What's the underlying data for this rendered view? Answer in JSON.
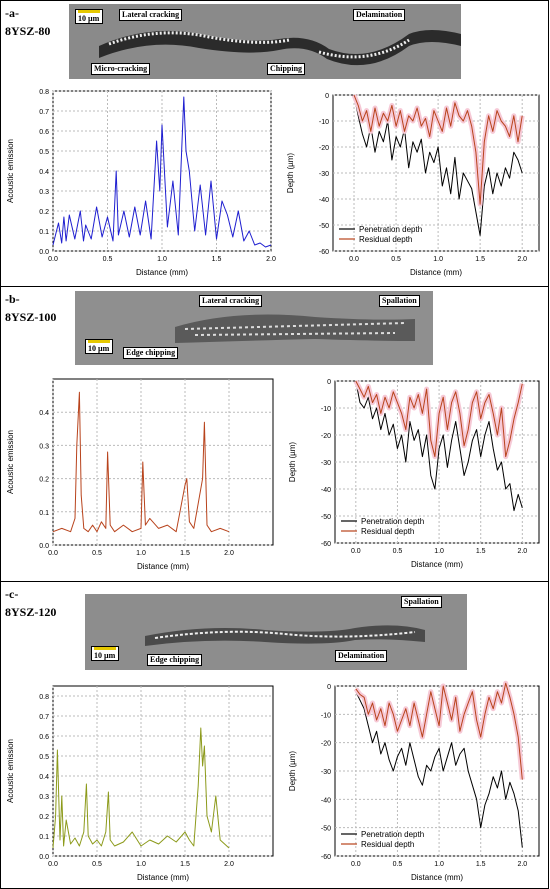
{
  "panels": [
    {
      "label": "-a-",
      "sample": "8YSZ-80",
      "scale_bar": "10 µm",
      "annotations": [
        "Lateral cracking",
        "Delamination",
        "Micro-cracking",
        "Chipping"
      ]
    },
    {
      "label": "-b-",
      "sample": "8YSZ-100",
      "scale_bar": "10 µm",
      "annotations": [
        "Lateral cracking",
        "Spallation",
        "Edge chipping"
      ]
    },
    {
      "label": "-c-",
      "sample": "8YSZ-120",
      "scale_bar": "10 µm",
      "annotations": [
        "Spallation",
        "Edge chipping",
        "Delamination"
      ]
    }
  ],
  "colors": {
    "ae_a": "#1f1fd0",
    "ae_b": "#b8431c",
    "ae_c": "#8c9a1a",
    "penetration": "#000000",
    "residual": "#b8431c",
    "band": "#f6c9d6"
  },
  "chart_data": [
    {
      "type": "line",
      "panel": "a",
      "xlabel": "Distance (mm)",
      "ylabel": "Acoustic emission",
      "xlim": [
        0,
        2
      ],
      "ylim": [
        0,
        0.8
      ],
      "xticks": [
        0.0,
        0.5,
        1.0,
        1.5,
        2.0
      ],
      "yticks": [
        0.0,
        0.1,
        0.2,
        0.3,
        0.4,
        0.5,
        0.6,
        0.7,
        0.8
      ],
      "series": [
        {
          "x": [
            0.0,
            0.05,
            0.08,
            0.1,
            0.12,
            0.15,
            0.2,
            0.25,
            0.28,
            0.3,
            0.35,
            0.4,
            0.45,
            0.5,
            0.55,
            0.58,
            0.6,
            0.65,
            0.7,
            0.75,
            0.8,
            0.85,
            0.9,
            0.95,
            0.98,
            1.0,
            1.05,
            1.1,
            1.15,
            1.2,
            1.22,
            1.25,
            1.3,
            1.35,
            1.4,
            1.45,
            1.5,
            1.55,
            1.6,
            1.65,
            1.7,
            1.75,
            1.8,
            1.85,
            1.9,
            1.95,
            2.0
          ],
          "y": [
            0.03,
            0.14,
            0.04,
            0.17,
            0.05,
            0.18,
            0.06,
            0.2,
            0.05,
            0.13,
            0.06,
            0.22,
            0.07,
            0.17,
            0.05,
            0.4,
            0.08,
            0.2,
            0.07,
            0.22,
            0.08,
            0.25,
            0.06,
            0.55,
            0.3,
            0.63,
            0.12,
            0.35,
            0.08,
            0.77,
            0.5,
            0.4,
            0.1,
            0.33,
            0.08,
            0.35,
            0.06,
            0.25,
            0.18,
            0.07,
            0.2,
            0.05,
            0.1,
            0.03,
            0.04,
            0.02,
            0.03
          ]
        }
      ]
    },
    {
      "type": "line",
      "panel": "a",
      "xlabel": "Distance (mm)",
      "ylabel": "Depth (µm)",
      "xlim": [
        -0.25,
        2.2
      ],
      "ylim": [
        -60,
        0
      ],
      "xticks": [
        0.0,
        0.5,
        1.0,
        1.5,
        2.0
      ],
      "yticks": [
        -60,
        -50,
        -40,
        -30,
        -20,
        -10,
        0
      ],
      "legend": "bottom-left",
      "series": [
        {
          "name": "Penetration depth",
          "x": [
            0.0,
            0.05,
            0.1,
            0.15,
            0.2,
            0.25,
            0.3,
            0.35,
            0.4,
            0.45,
            0.5,
            0.55,
            0.6,
            0.65,
            0.7,
            0.75,
            0.8,
            0.85,
            0.9,
            0.95,
            1.0,
            1.05,
            1.1,
            1.15,
            1.2,
            1.25,
            1.3,
            1.35,
            1.4,
            1.45,
            1.5,
            1.55,
            1.6,
            1.65,
            1.7,
            1.75,
            1.8,
            1.85,
            1.9,
            1.95,
            2.0
          ],
          "y": [
            0,
            -8,
            -15,
            -20,
            -12,
            -22,
            -14,
            -18,
            -10,
            -25,
            -16,
            -20,
            -13,
            -28,
            -18,
            -22,
            -17,
            -30,
            -22,
            -26,
            -20,
            -35,
            -28,
            -38,
            -24,
            -40,
            -30,
            -33,
            -36,
            -45,
            -54,
            -35,
            -28,
            -38,
            -30,
            -35,
            -28,
            -32,
            -22,
            -25,
            -30
          ]
        },
        {
          "name": "Residual depth",
          "x": [
            0.0,
            0.05,
            0.1,
            0.15,
            0.2,
            0.25,
            0.3,
            0.35,
            0.4,
            0.45,
            0.5,
            0.55,
            0.6,
            0.65,
            0.7,
            0.75,
            0.8,
            0.85,
            0.9,
            0.95,
            1.0,
            1.05,
            1.1,
            1.15,
            1.2,
            1.25,
            1.3,
            1.35,
            1.4,
            1.45,
            1.5,
            1.55,
            1.6,
            1.65,
            1.7,
            1.75,
            1.8,
            1.85,
            1.9,
            1.95,
            2.0
          ],
          "y": [
            0,
            -4,
            -10,
            -6,
            -14,
            -5,
            -12,
            -7,
            -10,
            -4,
            -12,
            -6,
            -14,
            -8,
            -10,
            -5,
            -12,
            -9,
            -16,
            -6,
            -10,
            -14,
            -5,
            -12,
            -3,
            -8,
            -10,
            -6,
            -12,
            -22,
            -42,
            -18,
            -8,
            -14,
            -6,
            -10,
            -12,
            -16,
            -8,
            -18,
            -8
          ]
        }
      ]
    },
    {
      "type": "line",
      "panel": "b",
      "xlabel": "Distance (mm)",
      "ylabel": "Acoustic emission",
      "xlim": [
        0,
        2.5
      ],
      "ylim": [
        0,
        0.5
      ],
      "xticks": [
        0.0,
        0.5,
        1.0,
        1.5,
        2.0
      ],
      "yticks": [
        0.0,
        0.1,
        0.2,
        0.3,
        0.4
      ],
      "series": [
        {
          "x": [
            0.0,
            0.1,
            0.2,
            0.25,
            0.27,
            0.3,
            0.32,
            0.35,
            0.4,
            0.45,
            0.5,
            0.55,
            0.6,
            0.62,
            0.65,
            0.7,
            0.8,
            0.9,
            1.0,
            1.02,
            1.05,
            1.1,
            1.2,
            1.3,
            1.4,
            1.5,
            1.52,
            1.55,
            1.6,
            1.7,
            1.72,
            1.75,
            1.8,
            1.9,
            2.0
          ],
          "y": [
            0.04,
            0.05,
            0.04,
            0.08,
            0.3,
            0.46,
            0.15,
            0.05,
            0.04,
            0.06,
            0.04,
            0.07,
            0.05,
            0.28,
            0.06,
            0.04,
            0.06,
            0.04,
            0.05,
            0.25,
            0.06,
            0.08,
            0.05,
            0.06,
            0.04,
            0.18,
            0.2,
            0.07,
            0.05,
            0.2,
            0.37,
            0.06,
            0.04,
            0.05,
            0.04
          ]
        }
      ]
    },
    {
      "type": "line",
      "panel": "b",
      "xlabel": "Distance (mm)",
      "ylabel": "Depth (µm)",
      "xlim": [
        -0.25,
        2.2
      ],
      "ylim": [
        -60,
        0
      ],
      "xticks": [
        0.0,
        0.5,
        1.0,
        1.5,
        2.0
      ],
      "yticks": [
        -60,
        -50,
        -40,
        -30,
        -20,
        -10,
        0
      ],
      "legend": "bottom-left",
      "series": [
        {
          "name": "Penetration depth",
          "x": [
            0.0,
            0.05,
            0.1,
            0.15,
            0.2,
            0.25,
            0.3,
            0.35,
            0.4,
            0.45,
            0.5,
            0.55,
            0.6,
            0.65,
            0.7,
            0.75,
            0.8,
            0.85,
            0.9,
            0.95,
            1.0,
            1.05,
            1.1,
            1.15,
            1.2,
            1.25,
            1.3,
            1.35,
            1.4,
            1.45,
            1.5,
            1.55,
            1.6,
            1.65,
            1.7,
            1.75,
            1.8,
            1.85,
            1.9,
            1.95,
            2.0
          ],
          "y": [
            0,
            -8,
            -10,
            -6,
            -14,
            -10,
            -18,
            -12,
            -20,
            -16,
            -25,
            -20,
            -30,
            -15,
            -22,
            -18,
            -28,
            -20,
            -35,
            -40,
            -25,
            -20,
            -32,
            -22,
            -15,
            -25,
            -35,
            -30,
            -22,
            -18,
            -28,
            -20,
            -15,
            -25,
            -33,
            -30,
            -40,
            -38,
            -48,
            -42,
            -47
          ]
        },
        {
          "name": "Residual depth",
          "x": [
            0.0,
            0.05,
            0.1,
            0.15,
            0.2,
            0.25,
            0.3,
            0.35,
            0.4,
            0.45,
            0.5,
            0.55,
            0.6,
            0.65,
            0.7,
            0.75,
            0.8,
            0.85,
            0.9,
            0.95,
            1.0,
            1.05,
            1.1,
            1.15,
            1.2,
            1.25,
            1.3,
            1.35,
            1.4,
            1.45,
            1.5,
            1.55,
            1.6,
            1.65,
            1.7,
            1.75,
            1.8,
            1.85,
            1.9,
            1.95,
            2.0
          ],
          "y": [
            0,
            -3,
            -6,
            -2,
            -8,
            -5,
            -12,
            -6,
            -10,
            -4,
            -8,
            -12,
            -18,
            -6,
            -10,
            -5,
            -12,
            -3,
            -22,
            -28,
            -12,
            -6,
            -18,
            -8,
            -4,
            -12,
            -24,
            -18,
            -8,
            -4,
            -14,
            -8,
            -5,
            -12,
            -20,
            -10,
            -28,
            -22,
            -14,
            -8,
            -1
          ]
        }
      ]
    },
    {
      "type": "line",
      "panel": "c",
      "xlabel": "Distance (mm)",
      "ylabel": "Acoustic emission",
      "xlim": [
        0,
        2.5
      ],
      "ylim": [
        0,
        0.85
      ],
      "xticks": [
        0.0,
        0.5,
        1.0,
        1.5,
        2.0
      ],
      "yticks": [
        0.0,
        0.1,
        0.2,
        0.3,
        0.4,
        0.5,
        0.6,
        0.7,
        0.8
      ],
      "series": [
        {
          "x": [
            0.0,
            0.03,
            0.05,
            0.08,
            0.1,
            0.12,
            0.15,
            0.2,
            0.25,
            0.3,
            0.35,
            0.38,
            0.4,
            0.45,
            0.5,
            0.55,
            0.6,
            0.63,
            0.65,
            0.7,
            0.8,
            0.9,
            1.0,
            1.1,
            1.2,
            1.3,
            1.4,
            1.5,
            1.55,
            1.6,
            1.65,
            1.68,
            1.7,
            1.72,
            1.75,
            1.8,
            1.85,
            1.9,
            1.95,
            2.0
          ],
          "y": [
            0.04,
            0.2,
            0.53,
            0.08,
            0.3,
            0.05,
            0.18,
            0.06,
            0.09,
            0.05,
            0.12,
            0.36,
            0.1,
            0.06,
            0.08,
            0.05,
            0.12,
            0.32,
            0.08,
            0.05,
            0.07,
            0.12,
            0.05,
            0.08,
            0.06,
            0.1,
            0.07,
            0.12,
            0.08,
            0.05,
            0.35,
            0.64,
            0.45,
            0.55,
            0.2,
            0.12,
            0.3,
            0.08,
            0.06,
            0.04
          ]
        }
      ]
    },
    {
      "type": "line",
      "panel": "c",
      "xlabel": "Distance (mm)",
      "ylabel": "Depth (µm)",
      "xlim": [
        -0.25,
        2.2
      ],
      "ylim": [
        -60,
        0
      ],
      "xticks": [
        0.0,
        0.5,
        1.0,
        1.5,
        2.0
      ],
      "yticks": [
        -60,
        -50,
        -40,
        -30,
        -20,
        -10,
        0
      ],
      "legend": "bottom-left",
      "series": [
        {
          "name": "Penetration depth",
          "x": [
            0.0,
            0.05,
            0.1,
            0.15,
            0.2,
            0.25,
            0.3,
            0.35,
            0.4,
            0.45,
            0.5,
            0.55,
            0.6,
            0.65,
            0.7,
            0.75,
            0.8,
            0.85,
            0.9,
            0.95,
            1.0,
            1.05,
            1.1,
            1.15,
            1.2,
            1.25,
            1.3,
            1.35,
            1.4,
            1.45,
            1.5,
            1.55,
            1.6,
            1.65,
            1.7,
            1.75,
            1.8,
            1.85,
            1.9,
            1.95,
            2.0
          ],
          "y": [
            -2,
            -5,
            -8,
            -14,
            -20,
            -16,
            -24,
            -20,
            -26,
            -30,
            -25,
            -22,
            -28,
            -20,
            -26,
            -32,
            -35,
            -28,
            -30,
            -25,
            -22,
            -30,
            -25,
            -20,
            -28,
            -24,
            -22,
            -30,
            -35,
            -40,
            -50,
            -42,
            -38,
            -32,
            -36,
            -30,
            -40,
            -34,
            -38,
            -44,
            -57
          ]
        },
        {
          "name": "Residual depth",
          "x": [
            0.0,
            0.05,
            0.1,
            0.15,
            0.2,
            0.25,
            0.3,
            0.35,
            0.4,
            0.45,
            0.5,
            0.55,
            0.6,
            0.65,
            0.7,
            0.75,
            0.8,
            0.85,
            0.9,
            0.95,
            1.0,
            1.05,
            1.1,
            1.15,
            1.2,
            1.25,
            1.3,
            1.35,
            1.4,
            1.45,
            1.5,
            1.55,
            1.6,
            1.65,
            1.7,
            1.75,
            1.8,
            1.85,
            1.9,
            1.95,
            2.0
          ],
          "y": [
            -1,
            -3,
            -4,
            -10,
            -6,
            -12,
            -8,
            -14,
            -6,
            -10,
            -16,
            -12,
            -8,
            -14,
            -6,
            -12,
            -18,
            -10,
            -2,
            -8,
            -14,
            0,
            -6,
            -12,
            -4,
            -16,
            -10,
            -6,
            -2,
            -12,
            -18,
            -10,
            -4,
            -8,
            -2,
            -6,
            1,
            -4,
            -10,
            -18,
            -33
          ]
        }
      ]
    }
  ]
}
